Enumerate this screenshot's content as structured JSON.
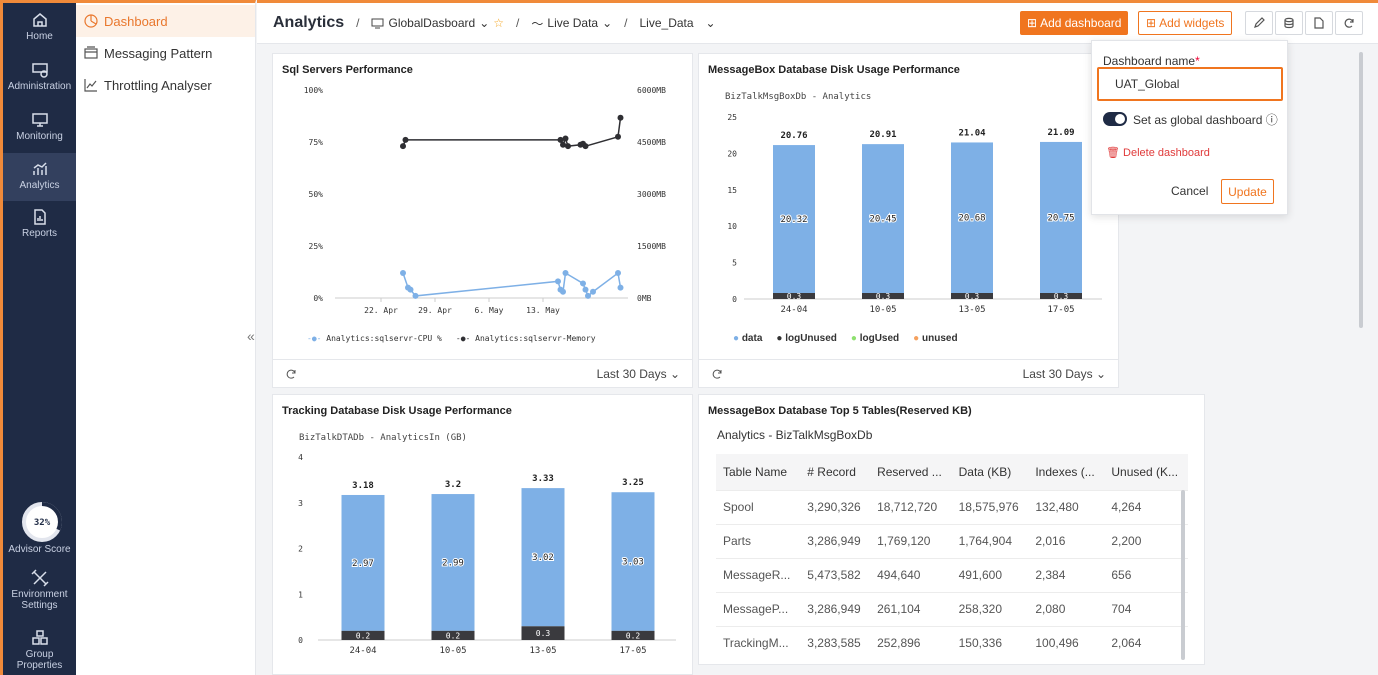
{
  "rail": {
    "items": [
      {
        "label": "Home",
        "icon": "home-icon"
      },
      {
        "label": "Administration",
        "icon": "server-gear-icon"
      },
      {
        "label": "Monitoring",
        "icon": "monitor-icon"
      },
      {
        "label": "Analytics",
        "icon": "analytics-icon"
      },
      {
        "label": "Reports",
        "icon": "report-icon"
      }
    ],
    "advisor_score": "32%",
    "advisor_label": "Advisor Score",
    "advisor_value": 0.32,
    "env_label_1": "Environment",
    "env_label_2": "Settings",
    "group_label_1": "Group",
    "group_label_2": "Properties"
  },
  "submenu": {
    "items": [
      {
        "label": "Dashboard"
      },
      {
        "label": "Messaging Pattern"
      },
      {
        "label": "Throttling Analyser"
      }
    ],
    "collapse_glyph": "«"
  },
  "topbar": {
    "title": "Analytics",
    "sep": "/",
    "dashboard": "GlobalDasboard",
    "live": "Live Data",
    "live_name": "Live_Data",
    "add_dashboard": "Add dashboard",
    "add_widgets": "Add widgets"
  },
  "popover": {
    "label": "Dashboard name",
    "required": "*",
    "name_value": "UAT_Global",
    "global_label": "Set as global dashboard",
    "delete_label": "Delete dashboard",
    "cancel_label": "Cancel",
    "update_label": "Update"
  },
  "widgets": {
    "sql": {
      "title": "Sql Servers Performance",
      "legend": [
        "Analytics:sqlservr-CPU %",
        "Analytics:sqlservr-Memory"
      ],
      "footer": "Last 30 Days"
    },
    "msgdisk": {
      "title": "MessageBox Database Disk Usage Performance",
      "subtitle": "BizTalkMsgBoxDb - Analytics",
      "legend": [
        "data",
        "logUnused",
        "logUsed",
        "unused"
      ],
      "footer": "Last 30 Days"
    },
    "tracking": {
      "title": "Tracking Database Disk Usage Performance",
      "subtitle": "BizTalkDTADb - AnalyticsIn (GB)"
    },
    "top5": {
      "title": "MessageBox Database Top 5 Tables(Reserved KB)",
      "subtitle": "Analytics - BizTalkMsgBoxDb",
      "headers": [
        "Table Name",
        "# Record",
        "Reserved ...",
        "Data (KB)",
        "Indexes (...",
        "Unused (K..."
      ],
      "rows": [
        [
          "Spool",
          "3,290,326",
          "18,712,720",
          "18,575,976",
          "132,480",
          "4,264"
        ],
        [
          "Parts",
          "3,286,949",
          "1,769,120",
          "1,764,904",
          "2,016",
          "2,200"
        ],
        [
          "MessageR...",
          "5,473,582",
          "494,640",
          "491,600",
          "2,384",
          "656"
        ],
        [
          "MessageP...",
          "3,286,949",
          "261,104",
          "258,320",
          "2,080",
          "704"
        ],
        [
          "TrackingM...",
          "3,283,585",
          "252,896",
          "150,336",
          "100,496",
          "2,064"
        ]
      ]
    }
  },
  "colors": {
    "accent": "#f0751f",
    "bar_data": "#7eb0e6",
    "bar_logUnused": "#3a3a3e",
    "bar_logUsed": "#8ee06f",
    "bar_unused": "#f5a15f",
    "cpu_line": "#7eb0e6",
    "mem_line": "#2f2f33"
  },
  "chart_data": [
    {
      "type": "line",
      "title": "Sql Servers Performance",
      "x_ticks": [
        "22. Apr",
        "29. Apr",
        "6. May",
        "13. May"
      ],
      "y_left_ticks": [
        "0%",
        "25%",
        "50%",
        "75%",
        "100%"
      ],
      "y_right_ticks": [
        "0MB",
        "1500MB",
        "3000MB",
        "4500MB",
        "6000MB"
      ],
      "series": [
        {
          "name": "Analytics:sqlservr-CPU %",
          "axis": "left",
          "points": [
            [
              0.0,
              12
            ],
            [
              0.02,
              5
            ],
            [
              0.03,
              4
            ],
            [
              0.05,
              1
            ],
            [
              0.62,
              8
            ],
            [
              0.63,
              4
            ],
            [
              0.64,
              3
            ],
            [
              0.65,
              12
            ],
            [
              0.72,
              7
            ],
            [
              0.73,
              4
            ],
            [
              0.74,
              1
            ],
            [
              0.76,
              3
            ],
            [
              0.86,
              12
            ],
            [
              0.87,
              5
            ]
          ]
        },
        {
          "name": "Analytics:sqlservr-Memory",
          "axis": "right",
          "points": [
            [
              0.0,
              4380
            ],
            [
              0.01,
              4560
            ],
            [
              0.63,
              4560
            ],
            [
              0.64,
              4420
            ],
            [
              0.65,
              4600
            ],
            [
              0.66,
              4380
            ],
            [
              0.71,
              4420
            ],
            [
              0.72,
              4450
            ],
            [
              0.73,
              4380
            ],
            [
              0.86,
              4650
            ],
            [
              0.87,
              5200
            ]
          ]
        }
      ]
    },
    {
      "type": "bar",
      "title": "MessageBox Database Disk Usage Performance",
      "ylabel": "BizTalkMsgBoxDb - Analytics",
      "categories": [
        "24-04",
        "10-05",
        "13-05",
        "17-05"
      ],
      "ylim": [
        0,
        25
      ],
      "y_ticks": [
        "0",
        "5",
        "10",
        "15",
        "20",
        "25"
      ],
      "totals": [
        "20.76",
        "20.91",
        "21.04",
        "21.09"
      ],
      "series": [
        {
          "name": "data",
          "values": [
            20.32,
            20.45,
            20.68,
            20.75
          ],
          "labels": [
            "20.32",
            "20.45",
            "20.68",
            "20.75"
          ]
        },
        {
          "name": "logUnused",
          "values": [
            0.3,
            0.3,
            0.3,
            0.3
          ],
          "labels": [
            "0.3",
            "0.3",
            "0.3",
            "0.3"
          ]
        }
      ]
    },
    {
      "type": "bar",
      "title": "Tracking Database Disk Usage Performance",
      "ylabel": "BizTalkDTADb - AnalyticsIn (GB)",
      "categories": [
        "24-04",
        "10-05",
        "13-05",
        "17-05"
      ],
      "ylim": [
        0,
        4
      ],
      "y_ticks": [
        "0",
        "1",
        "2",
        "3",
        "4"
      ],
      "totals": [
        "3.18",
        "3.2",
        "3.33",
        "3.25"
      ],
      "series": [
        {
          "name": "data",
          "values": [
            2.97,
            2.99,
            3.02,
            3.03
          ],
          "labels": [
            "2.97",
            "2.99",
            "3.02",
            "3.03"
          ]
        },
        {
          "name": "logUnused",
          "values": [
            0.2,
            0.2,
            0.3,
            0.2
          ],
          "labels": [
            "0.2",
            "0.2",
            "0.3",
            "0.2"
          ]
        }
      ]
    }
  ]
}
